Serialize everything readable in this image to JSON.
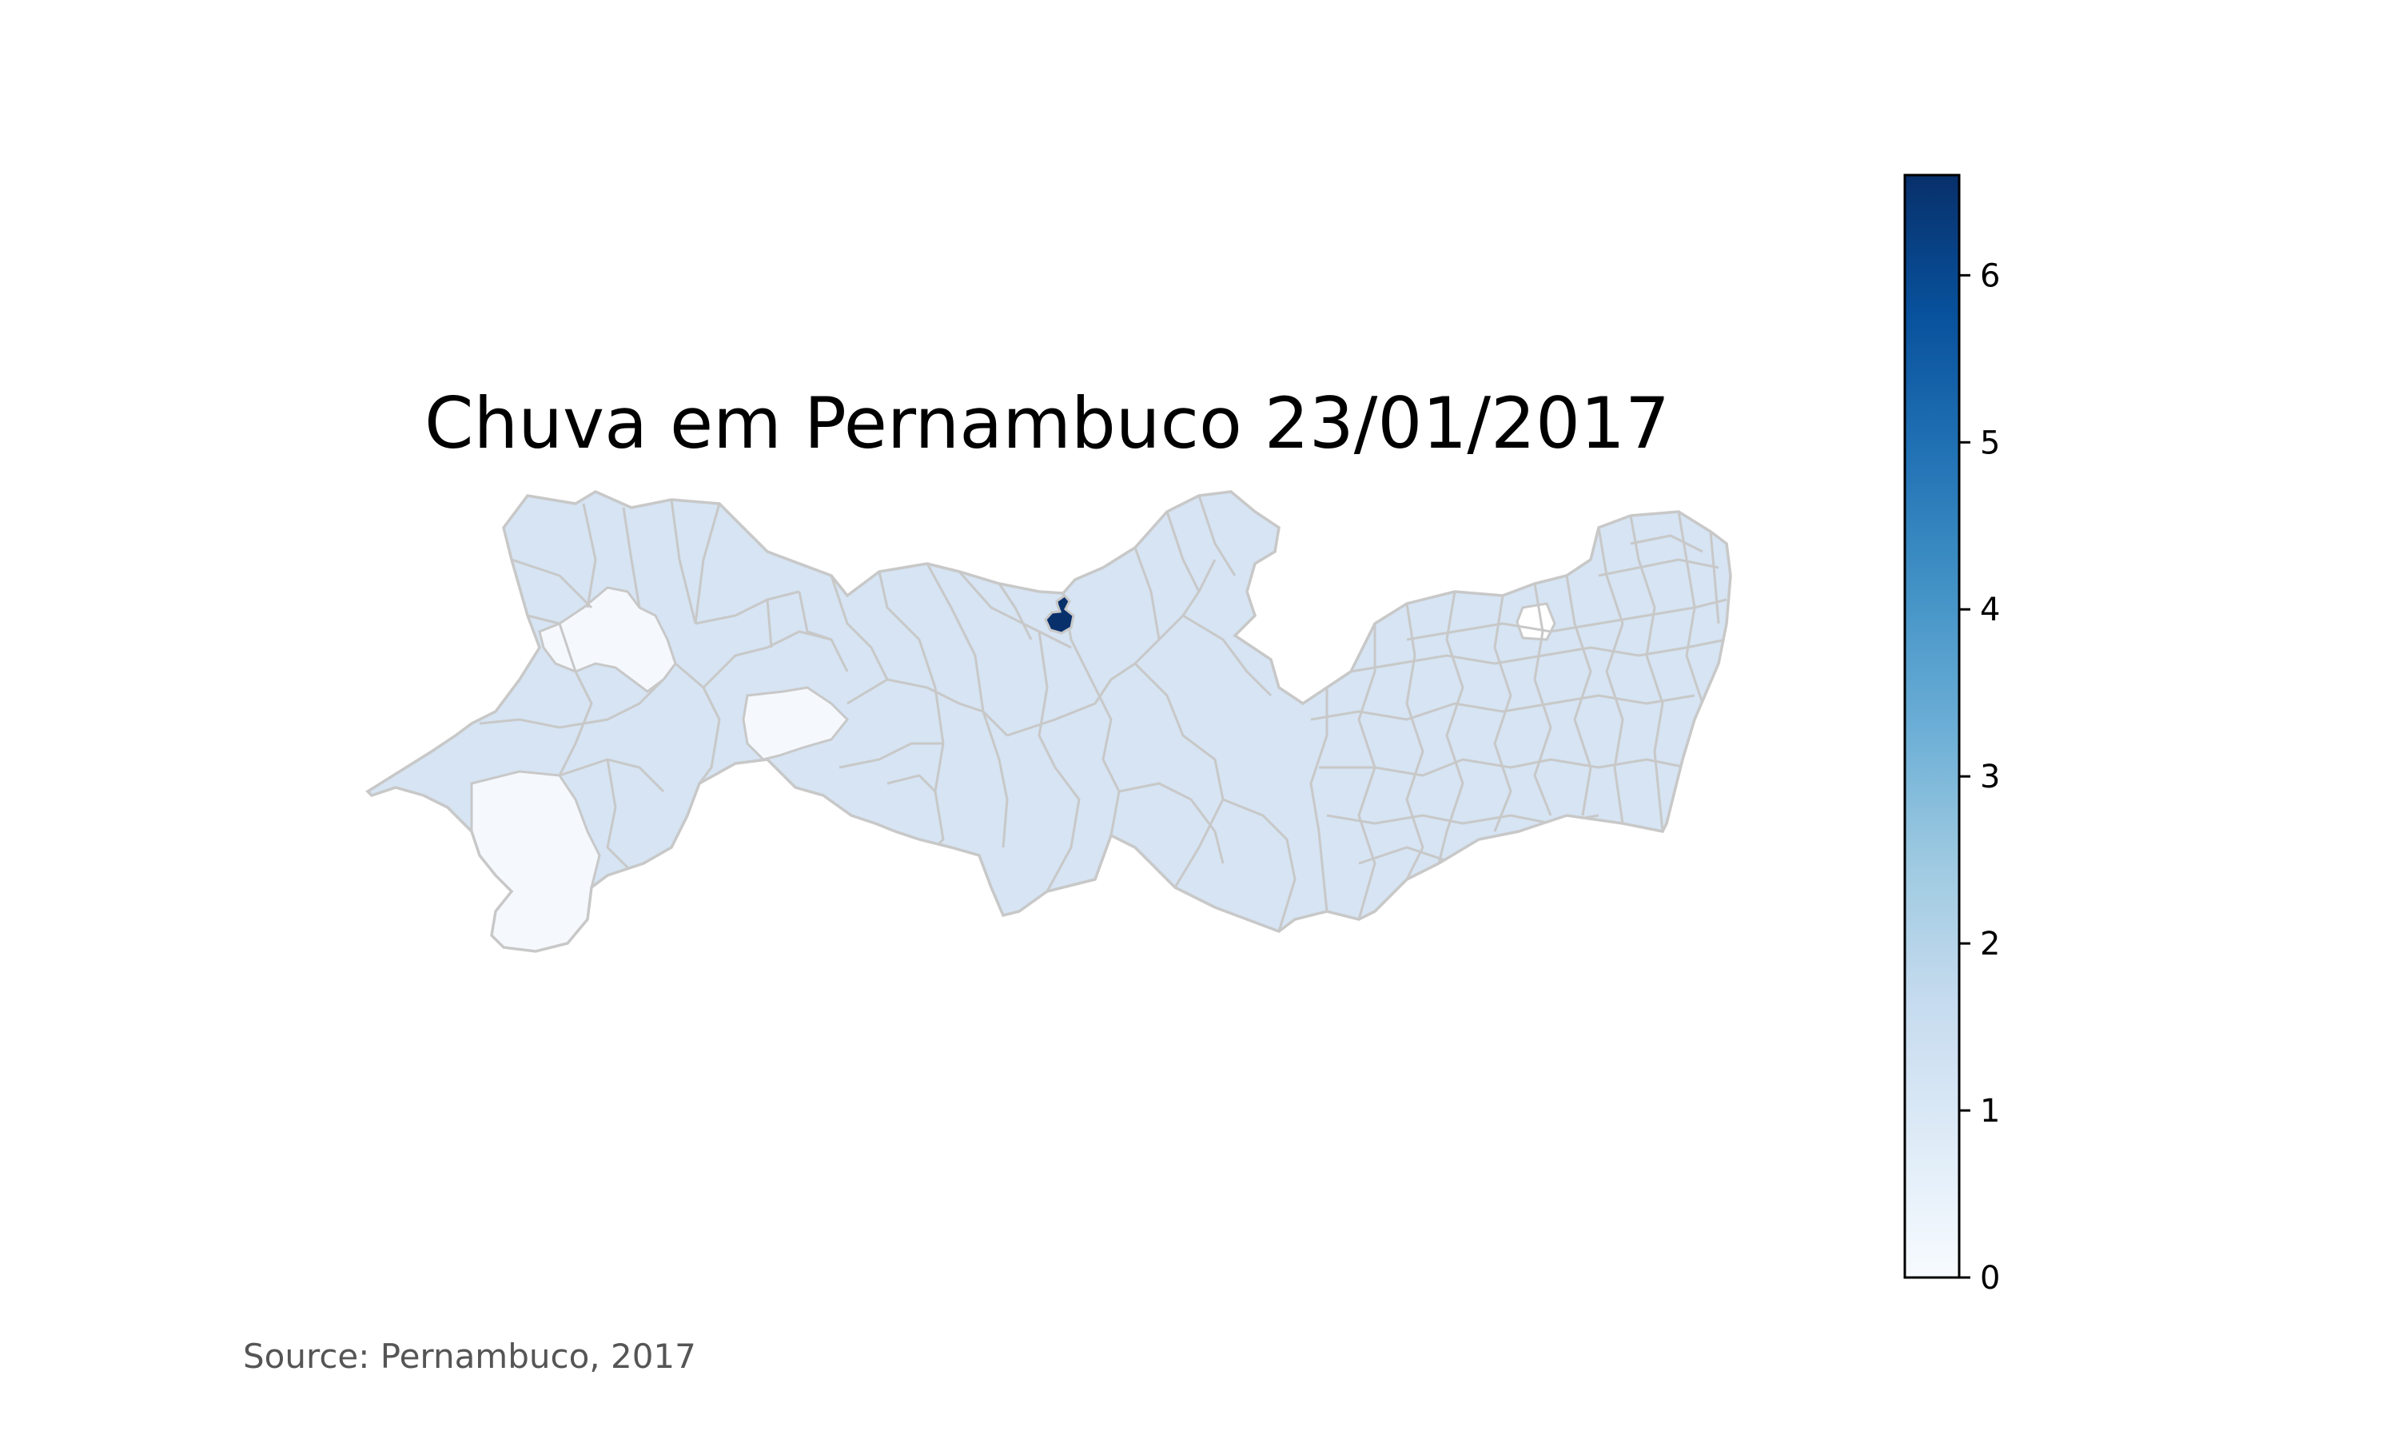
{
  "title": "Chuva em Pernambuco 23/01/2017",
  "source": "Source: Pernambuco, 2017",
  "colorbar": {
    "colormap": "Blues",
    "min": 0,
    "max": 6.6,
    "ticks": [
      "0",
      "1",
      "2",
      "3",
      "4",
      "5",
      "6"
    ]
  },
  "map": {
    "region": "Pernambuco",
    "border_color": "#c8c8c8",
    "highlight_color": "#08306b",
    "typical_fill": "#d6e4f3",
    "low_fill": "#f5f9fe"
  }
}
